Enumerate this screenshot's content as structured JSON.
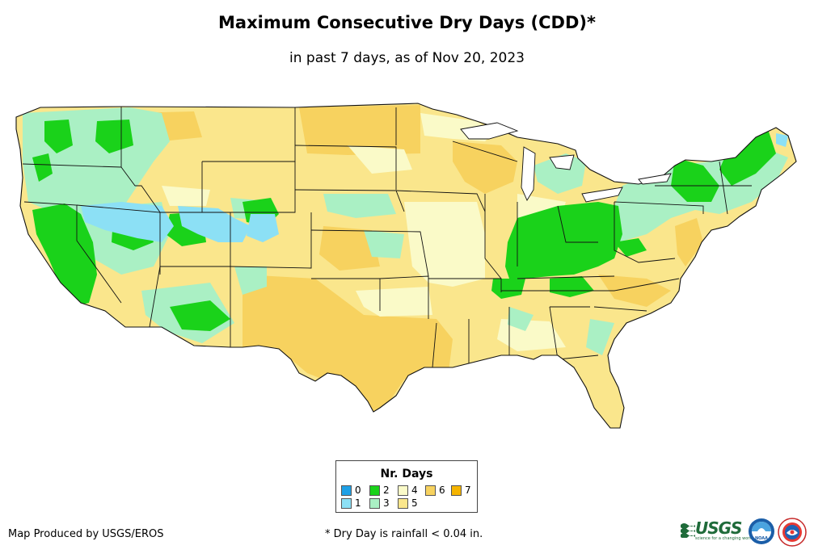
{
  "header": {
    "title": "Maximum Consecutive Dry Days (CDD)*",
    "subtitle": "in past 7 days, as of Nov 20, 2023"
  },
  "legend": {
    "title": "Nr. Days",
    "items": [
      {
        "label": "0",
        "color": "#1ea0e6"
      },
      {
        "label": "1",
        "color": "#8ce0f5"
      },
      {
        "label": "2",
        "color": "#1ad21a"
      },
      {
        "label": "3",
        "color": "#aaf0c4"
      },
      {
        "label": "4",
        "color": "#fafac8"
      },
      {
        "label": "5",
        "color": "#fae68c"
      },
      {
        "label": "6",
        "color": "#f7d25f"
      },
      {
        "label": "7",
        "color": "#f5b400"
      }
    ]
  },
  "footer": {
    "credit": "Map Produced by USGS/EROS",
    "note": "* Dry Day is rainfall < 0.04 in."
  },
  "logos": {
    "usgs_text": "USGS",
    "usgs_tagline": "science for a changing world",
    "noaa_text": "NOAA"
  }
}
